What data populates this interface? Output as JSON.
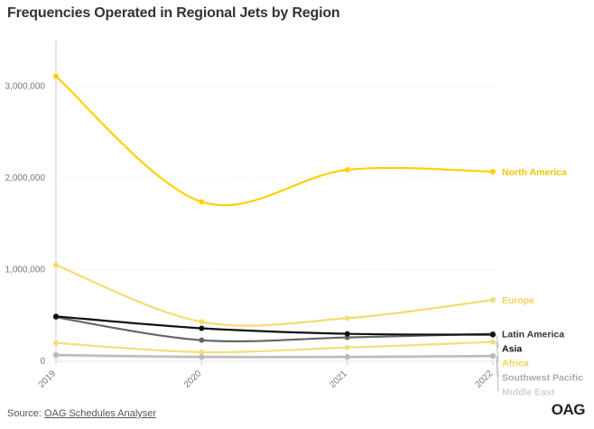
{
  "title": "Frequencies Operated in Regional Jets by Region",
  "source": {
    "prefix": "Source: ",
    "link_text": "OAG Schedules Analyser"
  },
  "logo_text": "OAG",
  "chart_data": {
    "type": "line",
    "title": "Frequencies Operated in Regional Jets by Region",
    "xlabel": "",
    "ylabel": "",
    "x": [
      "2019",
      "2020",
      "2021",
      "2022"
    ],
    "ylim": [
      0,
      3500000
    ],
    "yticks": [
      {
        "value": 0,
        "label": "0"
      },
      {
        "value": 1000000,
        "label": "1,000,000"
      },
      {
        "value": 2000000,
        "label": "2,000,000"
      },
      {
        "value": 3000000,
        "label": "3,000,000"
      }
    ],
    "grid": true,
    "legend": "direct labels at right end of lines",
    "series": [
      {
        "name": "North America",
        "color": "#ffd100",
        "label_color": "#f5c400",
        "values": [
          3110000,
          1740000,
          2090000,
          2070000
        ]
      },
      {
        "name": "Europe",
        "color": "#f5dc6e",
        "label_color": "#f2d24f",
        "values": [
          1050000,
          430000,
          470000,
          670000
        ]
      },
      {
        "name": "Asia",
        "color": "#111111",
        "label_color": "#111111",
        "values": [
          490000,
          360000,
          300000,
          290000
        ]
      },
      {
        "name": "Latin America",
        "color": "#666666",
        "label_color": "#333333",
        "values": [
          480000,
          230000,
          260000,
          300000
        ]
      },
      {
        "name": "Africa",
        "color": "#f3de7a",
        "label_color": "#f2d24f",
        "values": [
          200000,
          100000,
          150000,
          210000
        ]
      },
      {
        "name": "Southwest Pacific",
        "color": "#bbbbbb",
        "label_color": "#aaaaaa",
        "values": [
          70000,
          50000,
          50000,
          60000
        ]
      },
      {
        "name": "Middle East",
        "color": "#d8d8d8",
        "label_color": "#d0d0d0",
        "values": [
          60000,
          40000,
          40000,
          50000
        ]
      }
    ]
  }
}
